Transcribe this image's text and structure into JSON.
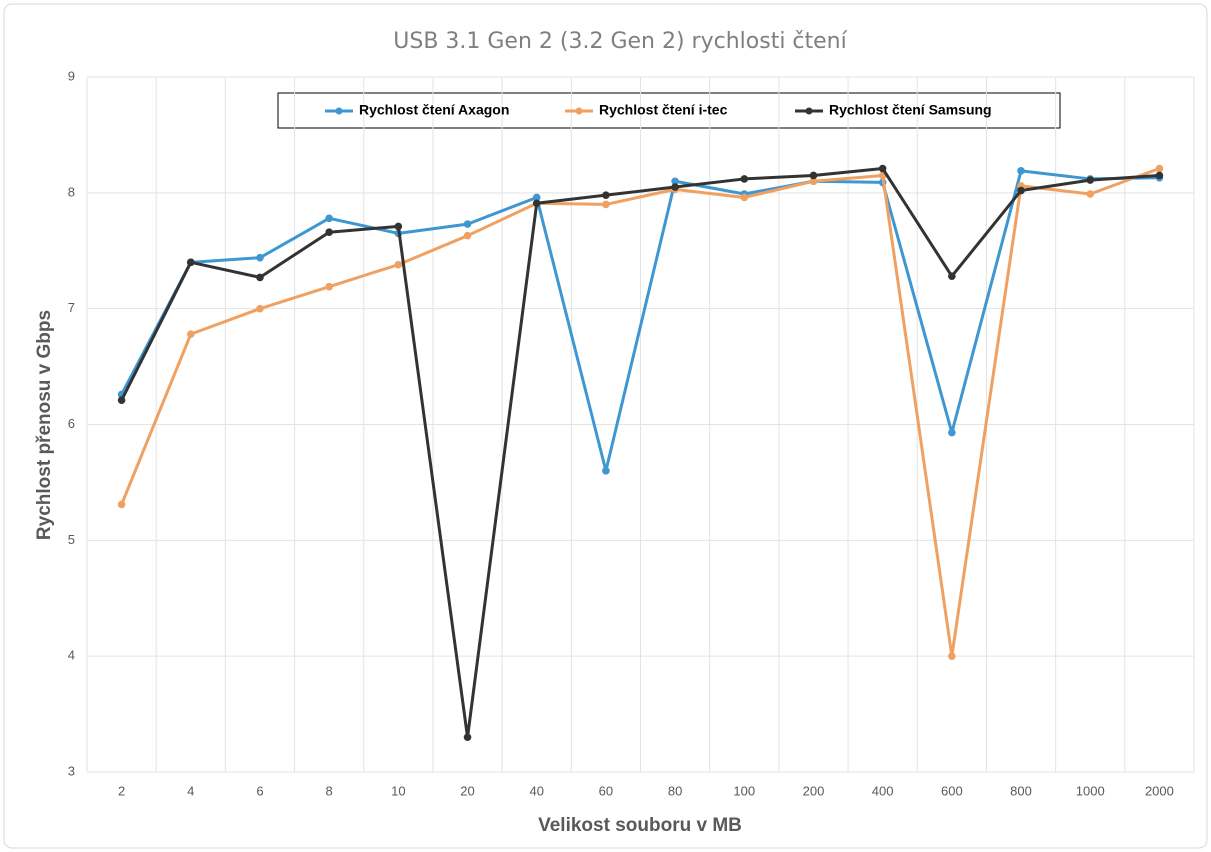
{
  "chart_data": {
    "type": "line",
    "title": "USB 3.1 Gen 2 (3.2 Gen 2) rychlosti čtení",
    "x_label": "Velikost souboru v MB",
    "y_label": "Rychlost přenosu v Gbps",
    "categories": [
      "2",
      "4",
      "6",
      "8",
      "10",
      "20",
      "40",
      "60",
      "80",
      "100",
      "200",
      "400",
      "600",
      "800",
      "1000",
      "2000"
    ],
    "series": [
      {
        "name": "Rychlost čtení Axagon",
        "color": "#3e97d1",
        "values": [
          6.26,
          7.4,
          7.44,
          7.78,
          7.65,
          7.73,
          7.96,
          5.6,
          8.1,
          7.99,
          8.1,
          8.09,
          5.93,
          8.19,
          8.12,
          8.13
        ]
      },
      {
        "name": "Rychlost čtení i-tec",
        "color": "#f0a060",
        "values": [
          5.31,
          6.78,
          7.0,
          7.19,
          7.38,
          7.63,
          7.91,
          7.9,
          8.03,
          7.96,
          8.1,
          8.15,
          4.0,
          8.06,
          7.99,
          8.21
        ]
      },
      {
        "name": "Rychlost čtení Samsung",
        "color": "#333333",
        "values": [
          6.21,
          7.4,
          7.27,
          7.66,
          7.71,
          3.3,
          7.91,
          7.98,
          8.05,
          8.12,
          8.15,
          8.21,
          7.28,
          8.02,
          8.11,
          8.15
        ]
      }
    ],
    "ylim": [
      3,
      9
    ],
    "yticks": [
      3,
      4,
      5,
      6,
      7,
      8,
      9
    ],
    "grid": true,
    "legend": "top"
  }
}
